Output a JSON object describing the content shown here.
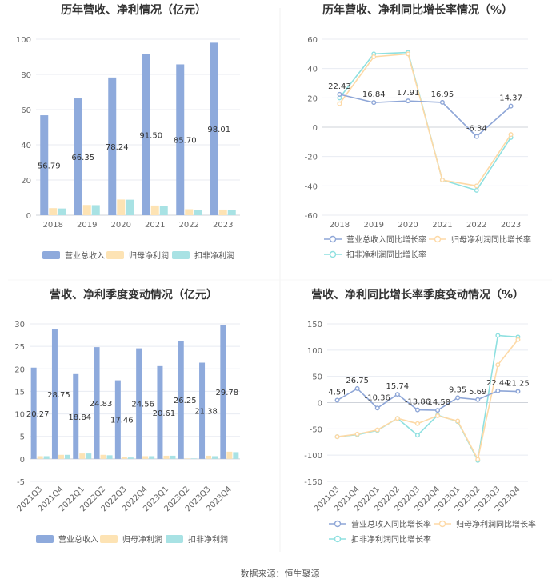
{
  "colors": {
    "revenue": "#8eaadc",
    "parent_profit": "#fde3b4",
    "deducted_profit": "#a8e2e4",
    "line_revenue": "#8ea6d7",
    "line_parent": "#fdd9a6",
    "line_deducted": "#8ee0e0"
  },
  "source_label": "数据来源：恒生聚源",
  "chart_data": [
    {
      "type": "bar",
      "title": "历年营收、净利情况（亿元）",
      "categories": [
        "2018",
        "2019",
        "2020",
        "2021",
        "2022",
        "2023"
      ],
      "ylim": [
        0,
        100
      ],
      "yticks": [
        0,
        20,
        40,
        60,
        80,
        100
      ],
      "series": [
        {
          "name": "营业总收入",
          "values": [
            56.79,
            66.35,
            78.24,
            91.5,
            85.7,
            98.01
          ]
        },
        {
          "name": "归母净利润",
          "values": [
            4.0,
            5.8,
            8.9,
            5.5,
            3.4,
            3.2
          ]
        },
        {
          "name": "扣非净利润",
          "values": [
            3.8,
            5.7,
            8.8,
            5.4,
            3.1,
            2.9
          ]
        }
      ],
      "labels": [
        "56.79",
        "66.35",
        "78.24",
        "91.50",
        "85.70",
        "98.01"
      ]
    },
    {
      "type": "line",
      "title": "历年营收、净利同比增长率情况（%）",
      "categories": [
        "2018",
        "2019",
        "2020",
        "2021",
        "2022",
        "2023"
      ],
      "ylim": [
        -60,
        60
      ],
      "yticks": [
        -60,
        -40,
        -20,
        0,
        20,
        40,
        60
      ],
      "series": [
        {
          "name": "营业总收入同比增长率",
          "values": [
            22.43,
            16.84,
            17.91,
            16.95,
            -6.34,
            14.37
          ]
        },
        {
          "name": "归母净利润同比增长率",
          "values": [
            16.0,
            48.0,
            50.0,
            -36.0,
            -40.0,
            -5.0
          ]
        },
        {
          "name": "扣非净利润同比增长率",
          "values": [
            20.0,
            50.0,
            51.0,
            -36.0,
            -43.0,
            -7.0
          ]
        }
      ],
      "labels": [
        "22.43",
        "16.84",
        "17.91",
        "16.95",
        "-6.34",
        "14.37"
      ]
    },
    {
      "type": "bar",
      "title": "营收、净利季度变动情况（亿元）",
      "categories": [
        "2021Q3",
        "2021Q4",
        "2022Q1",
        "2022Q2",
        "2022Q3",
        "2022Q4",
        "2023Q1",
        "2023Q2",
        "2023Q3",
        "2023Q4"
      ],
      "ylim": [
        -5,
        30
      ],
      "yticks": [
        -5,
        0,
        5,
        10,
        15,
        20,
        25,
        30
      ],
      "series": [
        {
          "name": "营业总收入",
          "values": [
            20.27,
            28.75,
            18.84,
            24.83,
            17.46,
            24.56,
            20.61,
            26.25,
            21.38,
            29.78
          ]
        },
        {
          "name": "归母净利润",
          "values": [
            0.6,
            0.9,
            1.2,
            0.9,
            0.4,
            0.6,
            0.7,
            0.1,
            0.7,
            1.6
          ]
        },
        {
          "name": "扣非净利润",
          "values": [
            0.6,
            0.9,
            1.2,
            0.8,
            0.3,
            0.6,
            0.7,
            0.1,
            0.6,
            1.5
          ]
        }
      ],
      "labels": [
        "20.27",
        "28.75",
        "18.84",
        "24.83",
        "17.46",
        "24.56",
        "20.61",
        "26.25",
        "21.38",
        "29.78"
      ]
    },
    {
      "type": "line",
      "title": "营收、净利同比增长率季度变动情况（%）",
      "categories": [
        "2021Q3",
        "2021Q4",
        "2022Q1",
        "2022Q2",
        "2022Q3",
        "2022Q4",
        "2023Q1",
        "2023Q2",
        "2023Q3",
        "2023Q4"
      ],
      "ylim": [
        -150,
        150
      ],
      "yticks": [
        -150,
        -100,
        -50,
        0,
        50,
        100,
        150
      ],
      "series": [
        {
          "name": "营业总收入同比增长率",
          "values": [
            4.54,
            26.75,
            -10.36,
            15.74,
            -13.86,
            -14.58,
            9.35,
            5.69,
            22.44,
            21.25
          ]
        },
        {
          "name": "归母净利润同比增长率",
          "values": [
            -65,
            -60,
            -52,
            -30,
            -40,
            -25,
            -35,
            -108,
            72,
            120
          ]
        },
        {
          "name": "扣非净利润同比增长率",
          "values": [
            -65,
            -61,
            -53,
            -30,
            -62,
            -24,
            -36,
            -110,
            128,
            125
          ]
        }
      ],
      "labels": [
        "4.54",
        "26.75",
        "-10.36",
        "15.74",
        "-13.86",
        "-14.58",
        "9.35",
        "5.69",
        "22.44",
        "21.25"
      ]
    }
  ]
}
